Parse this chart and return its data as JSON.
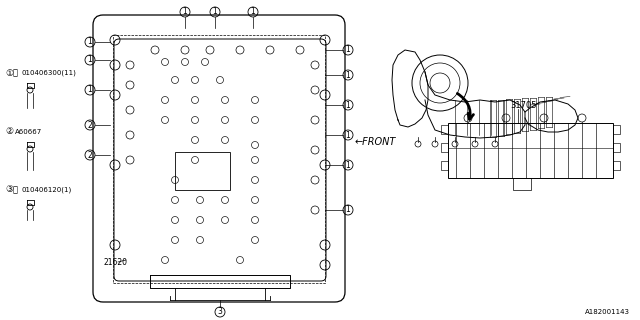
{
  "bg_color": "#ffffff",
  "line_color": "#000000",
  "text_color": "#000000",
  "watermark": "A182001143",
  "label1": "1 B 010406300(11)",
  "label2": "2  A60667",
  "label3": "3 B 010406120(1)",
  "ref1": "21620",
  "ref2": "31705",
  "front_label": "FRONT"
}
